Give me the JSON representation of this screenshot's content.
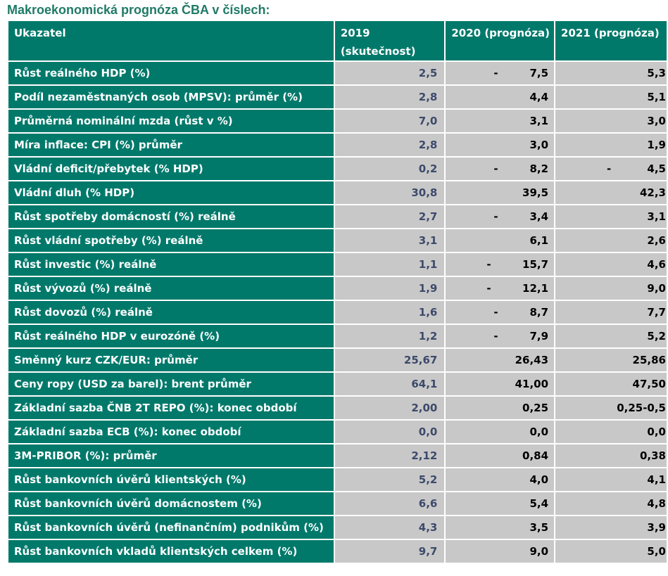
{
  "title": "Makroekonomická prognóza ČBA v číslech:",
  "headers": {
    "indicator": "Ukazatel",
    "y2019_line1": "2019",
    "y2019_line2": "(skutečnost)",
    "y2020": "2020 (prognóza)",
    "y2021": "2021 (prognóza)"
  },
  "rows": [
    {
      "label": "Růst reálného HDP (%)",
      "v2019": "2,5",
      "v2020": "7,5",
      "neg2020": true,
      "v2021": "5,3",
      "neg2021": false
    },
    {
      "label": "Podíl nezaměstnaných osob (MPSV): průměr (%)",
      "v2019": "2,8",
      "v2020": "4,4",
      "neg2020": false,
      "v2021": "5,1",
      "neg2021": false
    },
    {
      "label": "Průměrná nominální mzda (růst v %)",
      "v2019": "7,0",
      "v2020": "3,1",
      "neg2020": false,
      "v2021": "3,0",
      "neg2021": false
    },
    {
      "label": "Míra inflace: CPI (%) průměr",
      "v2019": "2,8",
      "v2020": "3,0",
      "neg2020": false,
      "v2021": "1,9",
      "neg2021": false
    },
    {
      "label": "Vládní deficit/přebytek (% HDP)",
      "v2019": "0,2",
      "v2020": "8,2",
      "neg2020": true,
      "v2021": "4,5",
      "neg2021": true
    },
    {
      "label": "Vládní dluh (% HDP)",
      "v2019": "30,8",
      "v2020": "39,5",
      "neg2020": false,
      "v2021": "42,3",
      "neg2021": false
    },
    {
      "label": "Růst spotřeby domácností (%) reálně",
      "v2019": "2,7",
      "v2020": "3,4",
      "neg2020": true,
      "v2021": "3,1",
      "neg2021": false
    },
    {
      "label": "Růst vládní spotřeby (%) reálně",
      "v2019": "3,1",
      "v2020": "6,1",
      "neg2020": false,
      "v2021": "2,6",
      "neg2021": false
    },
    {
      "label": "Růst investic (%) reálně",
      "v2019": "1,1",
      "v2020": "15,7",
      "neg2020": true,
      "v2021": "4,6",
      "neg2021": false
    },
    {
      "label": "Růst vývozů (%) reálně",
      "v2019": "1,9",
      "v2020": "12,1",
      "neg2020": true,
      "v2021": "9,0",
      "neg2021": false
    },
    {
      "label": "Růst dovozů (%) reálně",
      "v2019": "1,6",
      "v2020": "8,7",
      "neg2020": true,
      "v2021": "7,7",
      "neg2021": false
    },
    {
      "label": "Růst reálného HDP v eurozóně (%)",
      "v2019": "1,2",
      "v2020": "7,9",
      "neg2020": true,
      "v2021": "5,2",
      "neg2021": false
    },
    {
      "label": "Směnný kurz CZK/EUR: průměr",
      "v2019": "25,67",
      "v2020": "26,43",
      "neg2020": false,
      "v2021": "25,86",
      "neg2021": false
    },
    {
      "label": "Ceny ropy (USD za barel): brent průměr",
      "v2019": "64,1",
      "v2020": "41,00",
      "neg2020": false,
      "v2021": "47,50",
      "neg2021": false
    },
    {
      "label": "Základní sazba ČNB 2T REPO (%): konec období",
      "v2019": "2,00",
      "v2020": "0,25",
      "neg2020": false,
      "v2021": "0,25-0,5",
      "neg2021": false
    },
    {
      "label": "Základní sazba ECB (%): konec období",
      "v2019": "0,0",
      "v2020": "0,0",
      "neg2020": false,
      "v2021": "0,0",
      "neg2021": false
    },
    {
      "label": "3M-PRIBOR (%): průměr",
      "v2019": "2,12",
      "v2020": "0,84",
      "neg2020": false,
      "v2021": "0,38",
      "neg2021": false
    },
    {
      "label": "Růst bankovních úvěrů klientských (%)",
      "v2019": "5,2",
      "v2020": "4,0",
      "neg2020": false,
      "v2021": "4,1",
      "neg2021": false
    },
    {
      "label": "Růst bankovních úvěrů domácnostem (%)",
      "v2019": "6,6",
      "v2020": "5,4",
      "neg2020": false,
      "v2021": "4,8",
      "neg2021": false
    },
    {
      "label": "Růst bankovních úvěrů (nefinančním) podnikům (%)",
      "v2019": "4,3",
      "v2020": "3,5",
      "neg2020": false,
      "v2021": "3,9",
      "neg2021": false
    },
    {
      "label": "Růst bankovních vkladů klientských celkem (%)",
      "v2019": "9,7",
      "v2020": "9,0",
      "neg2020": false,
      "v2021": "5,0",
      "neg2021": false
    }
  ],
  "neg_sign": "-",
  "colors": {
    "header_bg": "#00796b",
    "value_bg": "#c8c8c8",
    "title": "#1f7a67",
    "value_2019": "#3c4a6b"
  }
}
